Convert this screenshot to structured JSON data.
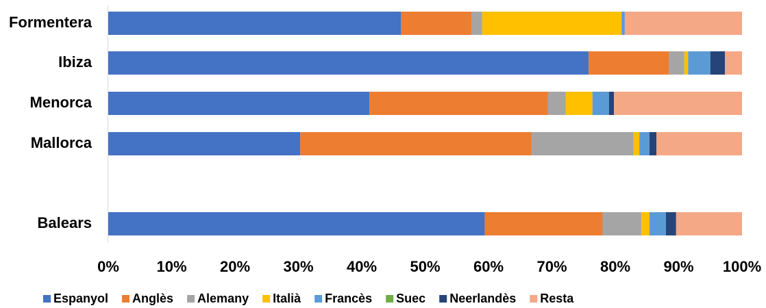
{
  "chart_data": {
    "type": "bar",
    "orientation": "horizontal",
    "stacked": "percent",
    "title": "",
    "xlabel": "",
    "ylabel": "",
    "xlim": [
      0,
      100
    ],
    "x_ticks": [
      "0%",
      "10%",
      "20%",
      "30%",
      "40%",
      "50%",
      "60%",
      "70%",
      "80%",
      "90%",
      "100%"
    ],
    "grid": false,
    "legend_position": "bottom",
    "categories": [
      "Formentera",
      "Ibiza",
      "Menorca",
      "Mallorca",
      "Balears"
    ],
    "series": [
      {
        "name": "Espanyol",
        "color": "#4472C4",
        "values": [
          46.2,
          75.8,
          41.2,
          30.3,
          59.4
        ]
      },
      {
        "name": "Anglès",
        "color": "#ED7D31",
        "values": [
          11.1,
          12.7,
          28.2,
          36.5,
          18.6
        ]
      },
      {
        "name": "Alemany",
        "color": "#A5A5A5",
        "values": [
          1.7,
          2.4,
          2.8,
          16.1,
          6.1
        ]
      },
      {
        "name": "Italià",
        "color": "#FFC000",
        "values": [
          22.0,
          0.6,
          4.2,
          0.9,
          1.3
        ]
      },
      {
        "name": "Francès",
        "color": "#5B9BD5",
        "values": [
          0.5,
          3.5,
          2.6,
          1.6,
          2.6
        ]
      },
      {
        "name": "Suec",
        "color": "#70AD47",
        "values": [
          0,
          0,
          0,
          0,
          0
        ]
      },
      {
        "name": "Neerlandès",
        "color": "#264478",
        "values": [
          0,
          2.3,
          0.8,
          1.1,
          1.6
        ]
      },
      {
        "name": "Resta",
        "color": "#F4A886",
        "values": [
          18.5,
          2.7,
          20.2,
          13.5,
          10.4
        ]
      }
    ]
  }
}
